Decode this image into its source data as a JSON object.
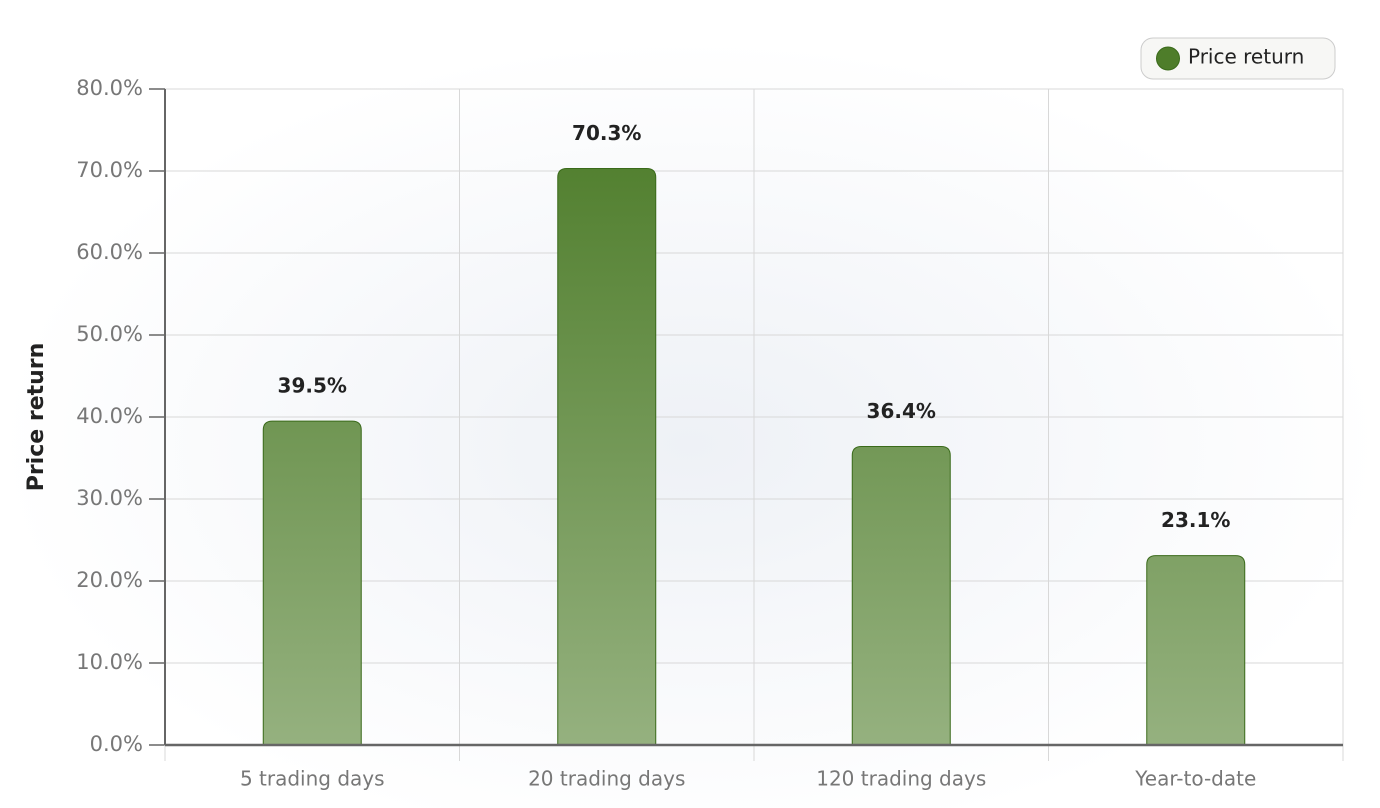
{
  "chart_data": {
    "type": "bar",
    "y_label": "Price return",
    "categories": [
      "5 trading days",
      "20 trading days",
      "120 trading days",
      "Year-to-date"
    ],
    "series": [
      {
        "name": "Price return",
        "color": "#4e7d2a",
        "values": [
          39.5,
          70.3,
          36.4,
          23.1
        ],
        "value_labels": [
          "39.5%",
          "70.3%",
          "36.4%",
          "23.1%"
        ]
      }
    ],
    "ylim": [
      0,
      80
    ],
    "yticks": [
      {
        "value": 0,
        "label": "0.0%"
      },
      {
        "value": 10,
        "label": "10.0%"
      },
      {
        "value": 20,
        "label": "20.0%"
      },
      {
        "value": 30,
        "label": "30.0%"
      },
      {
        "value": 40,
        "label": "40.0%"
      },
      {
        "value": 50,
        "label": "50.0%"
      },
      {
        "value": 60,
        "label": "60.0%"
      },
      {
        "value": 70,
        "label": "70.0%"
      },
      {
        "value": 80,
        "label": "80.0%"
      }
    ],
    "grid": true,
    "legend": "top-right"
  }
}
